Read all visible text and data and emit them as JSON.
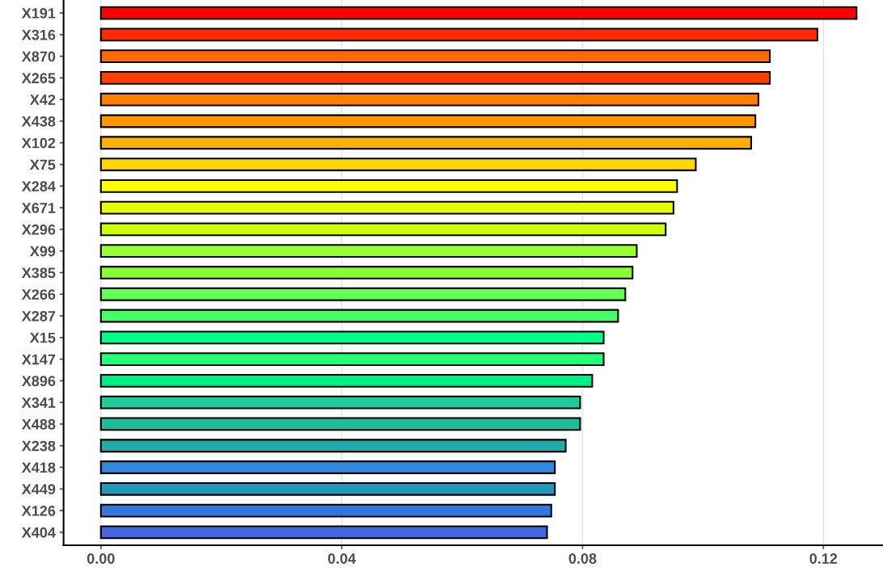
{
  "chart_data": {
    "type": "bar",
    "orientation": "horizontal",
    "categories": [
      "X191",
      "X316",
      "X870",
      "X265",
      "X42",
      "X438",
      "X102",
      "X75",
      "X284",
      "X671",
      "X296",
      "X99",
      "X385",
      "X266",
      "X287",
      "X15",
      "X147",
      "X896",
      "X341",
      "X488",
      "X238",
      "X418",
      "X449",
      "X126",
      "X404"
    ],
    "values": [
      0.1255,
      0.119,
      0.1111,
      0.1111,
      0.1092,
      0.1087,
      0.108,
      0.0988,
      0.0957,
      0.0951,
      0.0938,
      0.089,
      0.0883,
      0.0871,
      0.0859,
      0.0835,
      0.0835,
      0.0816,
      0.0796,
      0.0796,
      0.0772,
      0.0754,
      0.0754,
      0.0748,
      0.0741
    ],
    "colors": [
      "#ff0000",
      "#ff2a00",
      "#ff6a00",
      "#ff4000",
      "#ff7f00",
      "#ff9500",
      "#ffb000",
      "#ffd700",
      "#ffff00",
      "#e6ff00",
      "#ccff00",
      "#99ff33",
      "#88ff33",
      "#66ff55",
      "#44ff66",
      "#00ff88",
      "#22ff77",
      "#00ee88",
      "#22cc99",
      "#22bb99",
      "#22aaaa",
      "#3388dd",
      "#2299bb",
      "#3377dd",
      "#4466dd"
    ],
    "xlim": [
      -0.0062,
      0.1299
    ],
    "xticks": [
      {
        "value": 0,
        "label": "0.00"
      },
      0.04,
      0.08,
      0.12
    ],
    "grid": "x"
  }
}
